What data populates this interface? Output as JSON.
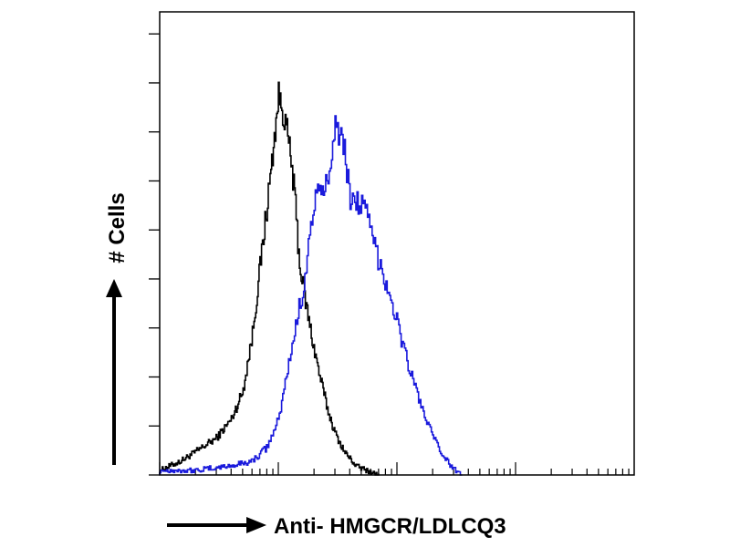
{
  "chart_data": {
    "type": "line",
    "title": "",
    "xlabel": "Anti- HMGCR/LDLCQ3",
    "ylabel": "# Cells",
    "x_scale": "log",
    "xlim": [
      1,
      10000
    ],
    "ylim": [
      0,
      100
    ],
    "grid": false,
    "legend": "none",
    "series": [
      {
        "color": "#000000",
        "x": [
          1,
          1.5,
          2,
          3,
          4,
          5,
          6,
          7,
          8,
          9,
          10,
          11,
          12,
          13,
          14,
          15,
          17,
          19,
          22,
          26,
          30,
          36,
          45,
          55,
          70
        ],
        "y": [
          1,
          3,
          5,
          8,
          12,
          18,
          30,
          45,
          58,
          70,
          82,
          78,
          73,
          66,
          57,
          46,
          37,
          30,
          22,
          14,
          9,
          5,
          2,
          1,
          0
        ]
      },
      {
        "color": "#1a1adc",
        "x": [
          1,
          2,
          4,
          6,
          8,
          10,
          13,
          16,
          20,
          25,
          30,
          35,
          40,
          48,
          55,
          65,
          80,
          100,
          120,
          150,
          180,
          220,
          280,
          350
        ],
        "y": [
          1,
          1,
          2,
          3,
          6,
          12,
          28,
          40,
          59,
          62,
          76,
          72,
          60,
          59,
          56,
          49,
          42,
          33,
          25,
          17,
          11,
          6,
          2,
          0
        ]
      }
    ]
  }
}
